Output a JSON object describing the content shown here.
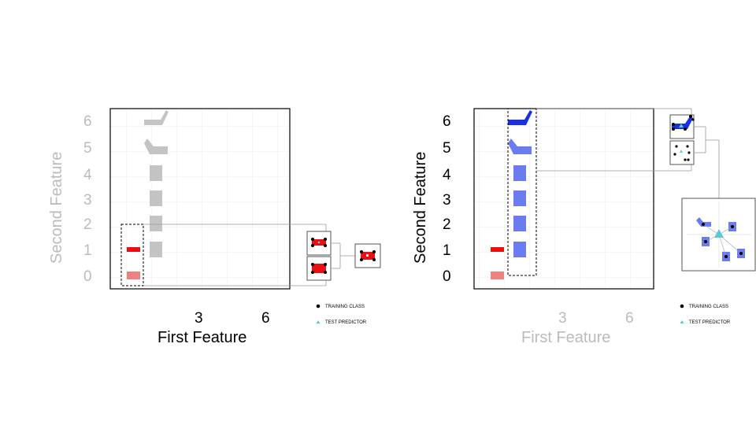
{
  "legend": {
    "training_label": "TRAINING CLASS",
    "test_label": "TEST PREDICTOR"
  },
  "left_panel": {
    "x_title": "First Feature",
    "y_title": "Second Feature",
    "x_ticks": [
      "3",
      "6"
    ],
    "y_ticks": [
      "6",
      "5",
      "4",
      "3",
      "2",
      "1",
      "0"
    ],
    "x_title_color": "#000000",
    "y_title_color": "#bbbbbb",
    "y_tick_color": "#bbbbbb",
    "x_tick_color": "#000000"
  },
  "right_panel": {
    "x_title": "First Feature",
    "y_title": "Second Feature",
    "x_ticks": [
      "3",
      "6"
    ],
    "y_ticks": [
      "6",
      "5",
      "4",
      "3",
      "2",
      "1",
      "0"
    ],
    "x_title_color": "#bbbbbb",
    "y_title_color": "#000000",
    "y_tick_color": "#000000",
    "x_tick_color": "#bbbbbb"
  },
  "colors": {
    "gray_shape": "#c4c4c4",
    "blue_dark": "#1a2fe0",
    "blue_light": "#6b7bf0",
    "red_dark": "#e81010",
    "red_light": "#f08080",
    "test_marker": "#5cc8d8"
  }
}
